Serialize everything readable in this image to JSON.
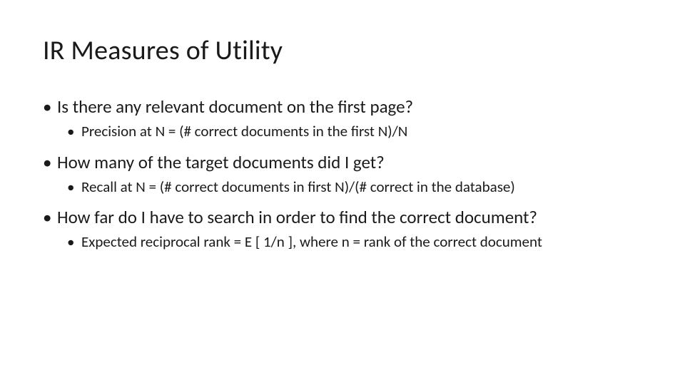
{
  "slide": {
    "title": "IR Measures of Utility",
    "bullets": [
      {
        "text": "Is there any relevant document on the first page?",
        "sub": "Precision at N = (# correct documents in the first N)/N"
      },
      {
        "text": "How many of the target documents did I get?",
        "sub": "Recall at N = (# correct documents in first N)/(# correct in the database)"
      },
      {
        "text": "How far do I have to search in order to find the correct document?",
        "sub": "Expected reciprocal rank = E [ 1/n ], where n = rank of the correct document"
      }
    ]
  },
  "style": {
    "background_color": "#ffffff",
    "text_color": "#1a1a1a",
    "title_fontsize": 38,
    "bullet_l1_fontsize": 25,
    "bullet_l2_fontsize": 21,
    "font_family": "Calibri"
  }
}
